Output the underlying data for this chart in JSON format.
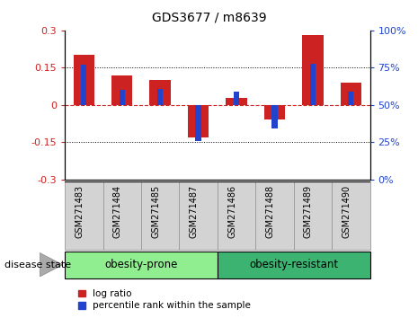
{
  "title": "GDS3677 / m8639",
  "samples": [
    "GSM271483",
    "GSM271484",
    "GSM271485",
    "GSM271487",
    "GSM271486",
    "GSM271488",
    "GSM271489",
    "GSM271490"
  ],
  "log_ratio": [
    0.2,
    0.12,
    0.1,
    -0.13,
    0.03,
    -0.06,
    0.28,
    0.09
  ],
  "pct_rank_offset": [
    0.16,
    0.06,
    0.065,
    -0.145,
    0.055,
    -0.095,
    0.165,
    0.055
  ],
  "groups": [
    {
      "label": "obesity-prone",
      "start": 0,
      "end": 4,
      "color": "#90ee90"
    },
    {
      "label": "obesity-resistant",
      "start": 4,
      "end": 8,
      "color": "#3cb371"
    }
  ],
  "group_label": "disease state",
  "ylim": [
    -0.3,
    0.3
  ],
  "yticks_left": [
    -0.3,
    -0.15,
    0,
    0.15,
    0.3
  ],
  "yticks_right": [
    0,
    25,
    50,
    75,
    100
  ],
  "red_color": "#cc2222",
  "blue_color": "#2244cc",
  "red_bar_width": 0.55,
  "blue_bar_width": 0.15,
  "legend_items": [
    "log ratio",
    "percentile rank within the sample"
  ],
  "dotted_lines": [
    -0.15,
    0.15
  ],
  "zero_line_color": "#cc2222",
  "bg_color": "#ffffff",
  "tick_label_color_left": "#cc2222",
  "tick_label_color_right": "#2244cc",
  "label_box_color": "#d3d3d3",
  "group1_color": "#90ee90",
  "group2_color": "#3cb371"
}
